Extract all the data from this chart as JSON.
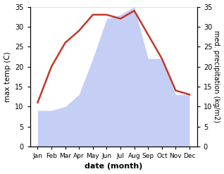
{
  "months": [
    "Jan",
    "Feb",
    "Mar",
    "Apr",
    "May",
    "Jun",
    "Jul",
    "Aug",
    "Sep",
    "Oct",
    "Nov",
    "Dec"
  ],
  "temperature": [
    11,
    20,
    26,
    29,
    33,
    33,
    32,
    34,
    28,
    22,
    14,
    13
  ],
  "precipitation": [
    9,
    9,
    10,
    13,
    22,
    32,
    33,
    35,
    22,
    22,
    13,
    13
  ],
  "temp_color": "#c0392b",
  "precip_fill_color": "#c5cef5",
  "ylabel_left": "max temp (C)",
  "ylabel_right": "med. precipitation (kg/m2)",
  "xlabel": "date (month)",
  "ylim_left": [
    0,
    35
  ],
  "ylim_right": [
    0,
    35
  ],
  "yticks": [
    0,
    5,
    10,
    15,
    20,
    25,
    30,
    35
  ],
  "background_color": "#ffffff"
}
